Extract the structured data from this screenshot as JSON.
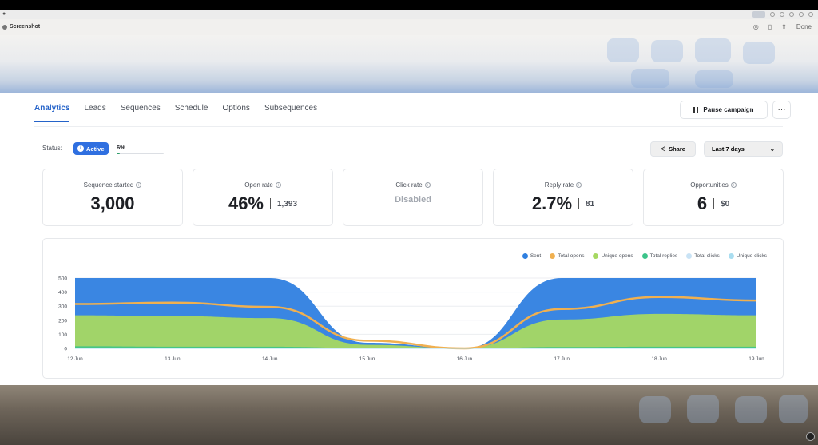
{
  "viewer": {
    "title": "Screenshot",
    "done_label": "Done"
  },
  "tabs": [
    {
      "label": "Analytics",
      "active": true
    },
    {
      "label": "Leads",
      "active": false
    },
    {
      "label": "Sequences",
      "active": false
    },
    {
      "label": "Schedule",
      "active": false
    },
    {
      "label": "Options",
      "active": false
    },
    {
      "label": "Subsequences",
      "active": false
    }
  ],
  "header": {
    "pause_label": "Pause campaign",
    "more_label": "···"
  },
  "status": {
    "label": "Status:",
    "badge": "Active",
    "progress_text": "6%",
    "progress": 0.06
  },
  "controls": {
    "share_label": "Share",
    "range_label": "Last 7 days"
  },
  "stats": [
    {
      "label": "Sequence started",
      "value": "3,000",
      "secondary": ""
    },
    {
      "label": "Open rate",
      "value": "46%",
      "secondary": "1,393"
    },
    {
      "label": "Click rate",
      "value": "Disabled",
      "secondary": ""
    },
    {
      "label": "Reply rate",
      "value": "2.7%",
      "secondary": "81"
    },
    {
      "label": "Opportunities",
      "value": "6",
      "secondary": "$0"
    }
  ],
  "colors": {
    "accent": "#2563c9",
    "sent": "#2f7fe0",
    "total_opens": "#f0b050",
    "unique_opens": "#a6d862",
    "total_replies": "#3cc48a",
    "total_clicks": "#c9e3f5",
    "unique_clicks": "#a9ddf0"
  },
  "chart_data": {
    "type": "area",
    "x": [
      "12 Jun",
      "13 Jun",
      "14 Jun",
      "15 Jun",
      "16 Jun",
      "17 Jun",
      "18 Jun",
      "19 Jun"
    ],
    "ylim": [
      0,
      500
    ],
    "yticks": [
      0,
      100,
      200,
      300,
      400,
      500
    ],
    "series": [
      {
        "name": "Sent",
        "values": [
          500,
          500,
          500,
          40,
          0,
          500,
          500,
          500
        ]
      },
      {
        "name": "Total opens",
        "values": [
          315,
          325,
          295,
          55,
          0,
          280,
          365,
          340
        ]
      },
      {
        "name": "Unique opens",
        "values": [
          235,
          230,
          215,
          25,
          0,
          205,
          245,
          235
        ]
      },
      {
        "name": "Total replies",
        "values": [
          15,
          12,
          12,
          2,
          0,
          10,
          12,
          12
        ]
      },
      {
        "name": "Total clicks",
        "values": [
          0,
          0,
          0,
          0,
          0,
          0,
          0,
          0
        ]
      },
      {
        "name": "Unique clicks",
        "values": [
          0,
          0,
          0,
          0,
          0,
          0,
          0,
          0
        ]
      }
    ],
    "legend_position": "top-right",
    "grid": true
  }
}
